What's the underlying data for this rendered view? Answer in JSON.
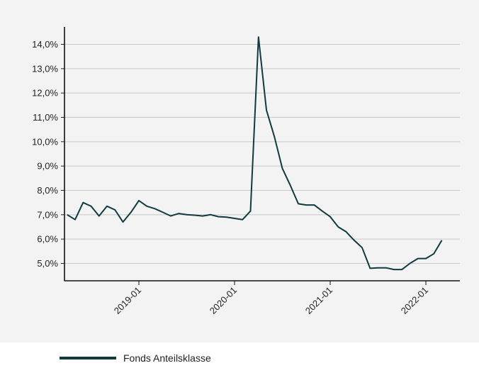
{
  "chart_data": {
    "type": "line",
    "title": "",
    "xlabel": "",
    "ylabel": "",
    "grid": "horizontal",
    "legend_position": "bottom-left",
    "line_color": "#0f3b40",
    "ylim": [
      4.3,
      15.0
    ],
    "y_ticks": [
      5,
      6,
      7,
      8,
      9,
      10,
      11,
      12,
      13,
      14
    ],
    "y_tick_labels": [
      "5,0%",
      "6,0%",
      "7,0%",
      "8,0%",
      "9,0%",
      "10,0%",
      "11,0%",
      "12,0%",
      "13,0%",
      "14,0%"
    ],
    "x_ticks": [
      "2019-01",
      "2020-01",
      "2021-01",
      "2022-01"
    ],
    "series": [
      {
        "name": "Fonds Anteilsklasse",
        "x": [
          "2018-04",
          "2018-05",
          "2018-06",
          "2018-07",
          "2018-08",
          "2018-09",
          "2018-10",
          "2018-11",
          "2018-12",
          "2019-01",
          "2019-02",
          "2019-03",
          "2019-04",
          "2019-05",
          "2019-06",
          "2019-07",
          "2019-08",
          "2019-09",
          "2019-10",
          "2019-11",
          "2019-12",
          "2020-01",
          "2020-02",
          "2020-03",
          "2020-04",
          "2020-05",
          "2020-06",
          "2020-07",
          "2020-08",
          "2020-09",
          "2020-10",
          "2020-11",
          "2020-12",
          "2021-01",
          "2021-02",
          "2021-03",
          "2021-04",
          "2021-05",
          "2021-06",
          "2021-07",
          "2021-08",
          "2021-09",
          "2021-10",
          "2021-11",
          "2021-12",
          "2022-01",
          "2022-02",
          "2022-03"
        ],
        "values": [
          7.0,
          6.8,
          7.5,
          7.35,
          6.95,
          7.35,
          7.2,
          6.7,
          7.1,
          7.58,
          7.35,
          7.25,
          7.1,
          6.95,
          7.05,
          7.0,
          6.98,
          6.95,
          7.0,
          6.92,
          6.9,
          6.85,
          6.8,
          7.15,
          14.3,
          11.3,
          10.2,
          8.9,
          8.2,
          7.45,
          7.4,
          7.4,
          7.15,
          6.92,
          6.5,
          6.3,
          5.95,
          5.65,
          4.8,
          4.82,
          4.82,
          4.75,
          4.75,
          5.0,
          5.2,
          5.2,
          5.4,
          5.95
        ]
      }
    ]
  }
}
